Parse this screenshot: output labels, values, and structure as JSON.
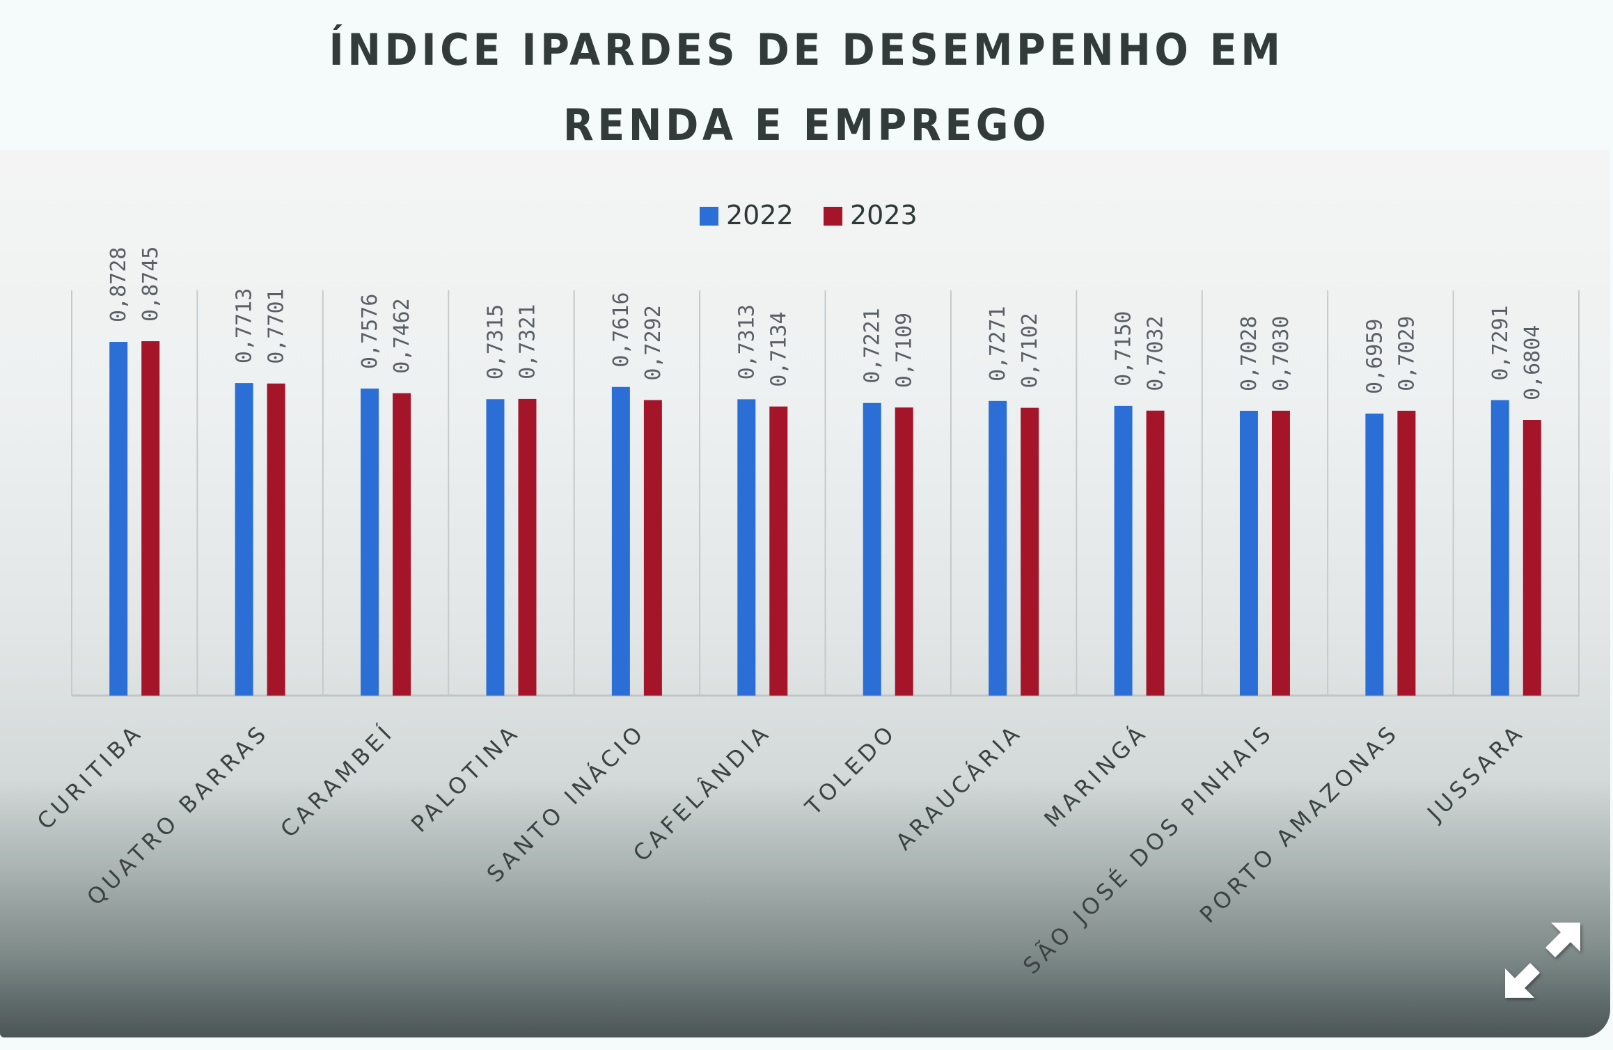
{
  "title_lines": [
    "ÍNDICE IPARDES DE DESEMPENHO EM",
    "RENDA E EMPREGO"
  ],
  "colors": {
    "series_2022": "#2b6fd6",
    "series_2023": "#a5152a"
  },
  "expand_icon": "expand-arrows-icon",
  "chart_data": {
    "type": "bar",
    "title": "ÍNDICE IPARDES DE DESEMPENHO EM RENDA E EMPREGO",
    "xlabel": "",
    "ylabel": "",
    "ylim": [
      0,
      1
    ],
    "grid": "vertical category separators",
    "legend_position": "top-center",
    "categories": [
      "CURITIBA",
      "QUATRO BARRAS",
      "CARAMBEÍ",
      "PALOTINA",
      "SANTO INÁCIO",
      "CAFELÂNDIA",
      "TOLEDO",
      "ARAUCÁRIA",
      "MARINGÁ",
      "SÃO JOSÉ DOS PINHAIS",
      "PORTO AMAZONAS",
      "JUSSARA"
    ],
    "series": [
      {
        "name": "2022",
        "color": "#2b6fd6",
        "values": [
          0.8728,
          0.7713,
          0.7576,
          0.7315,
          0.7616,
          0.7313,
          0.7221,
          0.7271,
          0.715,
          0.7028,
          0.6959,
          0.7291
        ],
        "labels": [
          "0,8728",
          "0,7713",
          "0,7576",
          "0,7315",
          "0,7616",
          "0,7313",
          "0,7221",
          "0,7271",
          "0,7150",
          "0,7028",
          "0,6959",
          "0,7291"
        ]
      },
      {
        "name": "2023",
        "color": "#a5152a",
        "values": [
          0.8745,
          0.7701,
          0.7462,
          0.7321,
          0.7292,
          0.7134,
          0.7109,
          0.7102,
          0.7032,
          0.703,
          0.7029,
          0.6804
        ],
        "labels": [
          "0,8745",
          "0,7701",
          "0,7462",
          "0,7321",
          "0,7292",
          "0,7134",
          "0,7109",
          "0,7102",
          "0,7032",
          "0,7030",
          "0,7029",
          "0,6804"
        ]
      }
    ]
  }
}
